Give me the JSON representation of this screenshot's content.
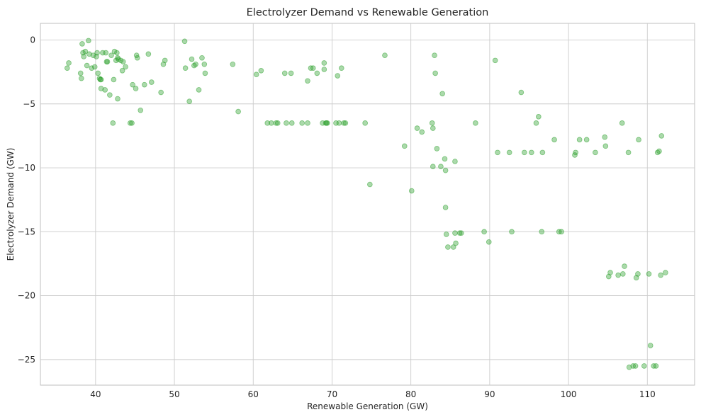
{
  "chart_data": {
    "type": "scatter",
    "title": "Electrolyzer Demand vs Renewable Generation",
    "xlabel": "Renewable Generation (GW)",
    "ylabel": "Electrolyzer Demand (GW)",
    "xlim": [
      33,
      116
    ],
    "ylim": [
      -27,
      1.3
    ],
    "xticks": [
      40,
      50,
      60,
      70,
      80,
      90,
      100,
      110
    ],
    "yticks": [
      0,
      -5,
      -10,
      -15,
      -20,
      -25
    ],
    "ytick_labels": [
      "0",
      "−5",
      "−10",
      "−15",
      "−20",
      "−25"
    ],
    "grid": true,
    "color": "#2ca02c",
    "points": [
      [
        36.4,
        -2.2
      ],
      [
        36.6,
        -1.8
      ],
      [
        38.1,
        -2.6
      ],
      [
        38.2,
        -3.0
      ],
      [
        38.3,
        -0.3
      ],
      [
        38.4,
        -1.0
      ],
      [
        38.5,
        -1.3
      ],
      [
        38.7,
        -0.9
      ],
      [
        38.9,
        -2.0
      ],
      [
        39.1,
        -0.05
      ],
      [
        39.2,
        -1.1
      ],
      [
        39.5,
        -2.2
      ],
      [
        39.7,
        -1.2
      ],
      [
        39.9,
        -2.1
      ],
      [
        40.1,
        -1.3
      ],
      [
        40.2,
        -1.0
      ],
      [
        40.3,
        -2.6
      ],
      [
        40.5,
        -3.0
      ],
      [
        40.6,
        -3.1
      ],
      [
        40.7,
        -3.1
      ],
      [
        40.7,
        -3.8
      ],
      [
        40.9,
        -1.0
      ],
      [
        41.2,
        -3.9
      ],
      [
        41.3,
        -1.0
      ],
      [
        41.4,
        -1.7
      ],
      [
        41.5,
        -1.7
      ],
      [
        41.8,
        -4.3
      ],
      [
        42.0,
        -1.2
      ],
      [
        42.2,
        -6.5
      ],
      [
        42.3,
        -3.1
      ],
      [
        42.4,
        -0.9
      ],
      [
        42.6,
        -1.6
      ],
      [
        42.7,
        -1.0
      ],
      [
        42.8,
        -4.6
      ],
      [
        42.8,
        -1.4
      ],
      [
        42.9,
        -1.5
      ],
      [
        43.2,
        -1.6
      ],
      [
        43.4,
        -2.4
      ],
      [
        43.5,
        -1.7
      ],
      [
        43.8,
        -2.1
      ],
      [
        44.4,
        -6.5
      ],
      [
        44.6,
        -6.5
      ],
      [
        44.7,
        -3.5
      ],
      [
        45.1,
        -3.8
      ],
      [
        45.2,
        -1.2
      ],
      [
        45.3,
        -1.4
      ],
      [
        45.7,
        -5.5
      ],
      [
        46.2,
        -3.5
      ],
      [
        46.7,
        -1.1
      ],
      [
        47.1,
        -3.3
      ],
      [
        48.3,
        -4.1
      ],
      [
        48.6,
        -1.9
      ],
      [
        48.8,
        -1.6
      ],
      [
        51.3,
        -0.1
      ],
      [
        51.4,
        -2.2
      ],
      [
        51.9,
        -4.8
      ],
      [
        52.2,
        -1.5
      ],
      [
        52.5,
        -2.0
      ],
      [
        52.7,
        -1.9
      ],
      [
        53.1,
        -3.9
      ],
      [
        53.5,
        -1.4
      ],
      [
        53.8,
        -1.9
      ],
      [
        53.9,
        -2.6
      ],
      [
        57.4,
        -1.9
      ],
      [
        58.1,
        -5.6
      ],
      [
        60.4,
        -2.7
      ],
      [
        61.0,
        -2.4
      ],
      [
        61.8,
        -6.5
      ],
      [
        62.3,
        -6.5
      ],
      [
        62.9,
        -6.5
      ],
      [
        63.1,
        -6.5
      ],
      [
        64.0,
        -2.6
      ],
      [
        64.2,
        -6.5
      ],
      [
        64.8,
        -2.6
      ],
      [
        64.9,
        -6.5
      ],
      [
        66.2,
        -6.5
      ],
      [
        66.9,
        -6.5
      ],
      [
        66.9,
        -3.2
      ],
      [
        67.3,
        -2.2
      ],
      [
        67.6,
        -2.2
      ],
      [
        68.1,
        -2.6
      ],
      [
        68.8,
        -6.5
      ],
      [
        69.0,
        -2.3
      ],
      [
        69.0,
        -1.8
      ],
      [
        69.2,
        -6.5
      ],
      [
        69.3,
        -6.5
      ],
      [
        69.4,
        -6.5
      ],
      [
        70.5,
        -6.5
      ],
      [
        70.7,
        -2.8
      ],
      [
        70.9,
        -6.5
      ],
      [
        71.2,
        -2.2
      ],
      [
        71.5,
        -6.5
      ],
      [
        71.7,
        -6.5
      ],
      [
        74.2,
        -6.5
      ],
      [
        74.8,
        -11.3
      ],
      [
        76.7,
        -1.2
      ],
      [
        79.2,
        -8.3
      ],
      [
        80.1,
        -11.8
      ],
      [
        80.8,
        -6.9
      ],
      [
        81.4,
        -7.2
      ],
      [
        82.7,
        -6.5
      ],
      [
        82.8,
        -6.9
      ],
      [
        82.8,
        -9.9
      ],
      [
        83.0,
        -1.2
      ],
      [
        83.1,
        -2.6
      ],
      [
        83.3,
        -8.5
      ],
      [
        83.8,
        -9.9
      ],
      [
        84.0,
        -4.2
      ],
      [
        84.3,
        -9.3
      ],
      [
        84.4,
        -10.2
      ],
      [
        84.4,
        -13.1
      ],
      [
        84.5,
        -15.2
      ],
      [
        84.7,
        -16.2
      ],
      [
        85.4,
        -16.2
      ],
      [
        85.6,
        -15.1
      ],
      [
        85.6,
        -9.5
      ],
      [
        85.7,
        -15.9
      ],
      [
        86.2,
        -15.1
      ],
      [
        86.4,
        -15.1
      ],
      [
        88.2,
        -6.5
      ],
      [
        89.3,
        -15.0
      ],
      [
        89.9,
        -15.8
      ],
      [
        90.7,
        -1.6
      ],
      [
        91.0,
        -8.8
      ],
      [
        92.5,
        -8.8
      ],
      [
        92.8,
        -15.0
      ],
      [
        94.0,
        -4.1
      ],
      [
        94.4,
        -8.8
      ],
      [
        95.3,
        -8.8
      ],
      [
        95.9,
        -6.5
      ],
      [
        96.2,
        -6.0
      ],
      [
        96.6,
        -15.0
      ],
      [
        96.7,
        -8.8
      ],
      [
        98.2,
        -7.8
      ],
      [
        98.8,
        -15.0
      ],
      [
        99.1,
        -15.0
      ],
      [
        100.8,
        -9.0
      ],
      [
        100.9,
        -8.8
      ],
      [
        101.4,
        -7.8
      ],
      [
        102.3,
        -7.8
      ],
      [
        103.4,
        -8.8
      ],
      [
        104.6,
        -7.6
      ],
      [
        104.7,
        -8.3
      ],
      [
        105.1,
        -18.5
      ],
      [
        105.3,
        -18.2
      ],
      [
        106.3,
        -18.4
      ],
      [
        106.8,
        -6.5
      ],
      [
        106.9,
        -18.3
      ],
      [
        107.1,
        -17.7
      ],
      [
        107.6,
        -8.8
      ],
      [
        107.7,
        -25.6
      ],
      [
        108.2,
        -25.5
      ],
      [
        108.5,
        -25.5
      ],
      [
        108.6,
        -18.6
      ],
      [
        108.8,
        -18.3
      ],
      [
        108.9,
        -7.8
      ],
      [
        109.6,
        -25.5
      ],
      [
        110.2,
        -18.3
      ],
      [
        110.4,
        -23.9
      ],
      [
        110.8,
        -25.5
      ],
      [
        111.1,
        -25.5
      ],
      [
        111.3,
        -8.8
      ],
      [
        111.5,
        -8.7
      ],
      [
        111.7,
        -18.4
      ],
      [
        111.8,
        -7.5
      ],
      [
        112.3,
        -18.2
      ]
    ]
  }
}
